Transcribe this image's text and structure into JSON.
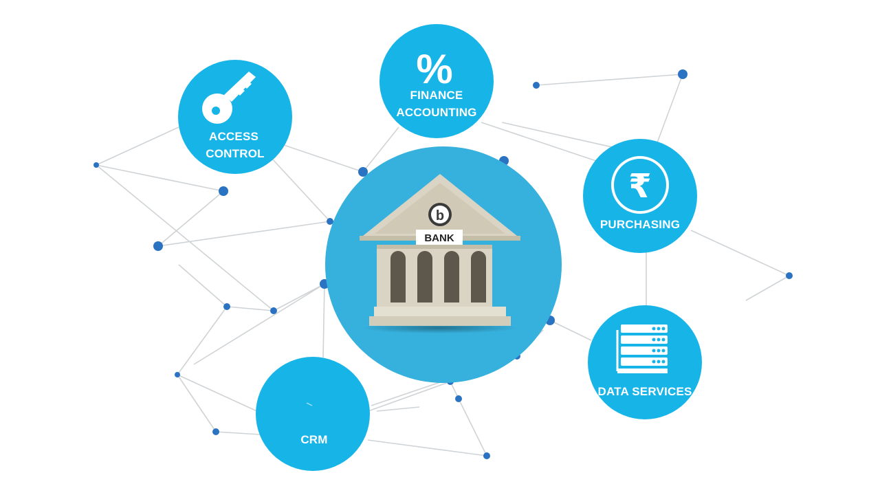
{
  "colors": {
    "node_fill": "#17b4e8",
    "center_fill": "#36b0dc",
    "dot_fill": "#2a72c2",
    "line_color": "#cfd3d6",
    "bank_stone": "#d9d4c3",
    "bank_shadow": "#b9b3a0",
    "bank_window": "#5e574c"
  },
  "center": {
    "label": "BANK",
    "logo_letter": "b",
    "icon": "bank-building-icon"
  },
  "nodes": {
    "access_control": {
      "line1": "ACCESS",
      "line2": "CONTROL",
      "icon": "key-icon"
    },
    "finance_accounting": {
      "symbol": "%",
      "line1": "FINANCE",
      "line2": "ACCOUNTING",
      "icon": "percent-icon"
    },
    "purchasing": {
      "symbol": "₹",
      "line1": "PURCHASING",
      "icon": "rupee-icon"
    },
    "data_services": {
      "line1": "DATA SERVICES",
      "icon": "server-rack-icon"
    },
    "crm": {
      "line1": "CRM",
      "icon": "crm-icon"
    }
  }
}
